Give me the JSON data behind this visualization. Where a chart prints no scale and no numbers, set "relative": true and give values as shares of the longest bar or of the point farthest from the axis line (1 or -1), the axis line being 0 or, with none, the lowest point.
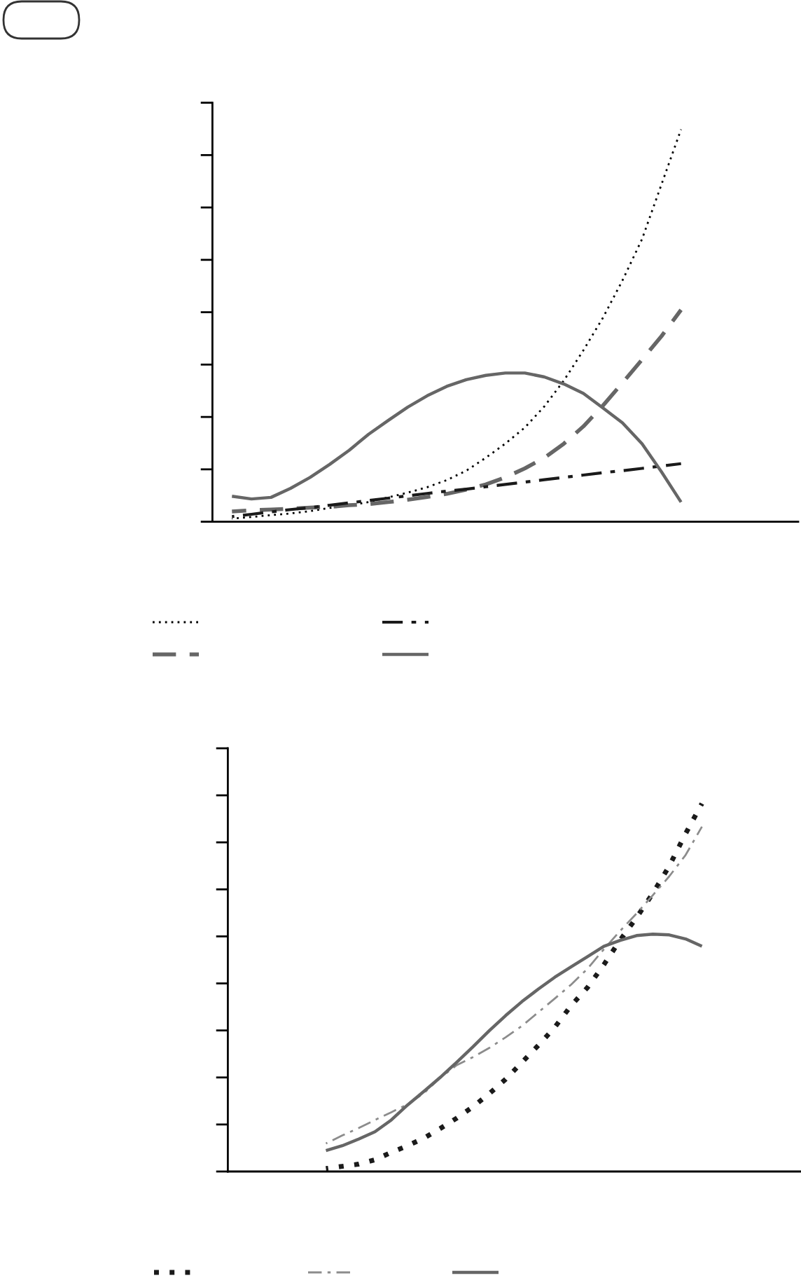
{
  "chart_data": [
    {
      "type": "line",
      "relative": true,
      "categories": [
        null,
        null,
        null,
        null,
        null,
        null,
        null,
        null,
        null,
        null,
        null,
        null,
        null,
        null,
        null,
        null,
        null,
        null,
        null,
        null,
        null,
        null,
        null,
        null,
        null,
        null,
        null,
        null,
        null,
        null,
        null
      ],
      "series": [
        {
          "color": "#000000",
          "line_style": "dotted",
          "values": [
            null,
            0.008,
            0.012,
            0.017,
            0.021,
            0.027,
            0.035,
            0.042,
            0.05,
            0.062,
            0.074,
            0.088,
            0.106,
            0.13,
            0.163,
            0.199,
            0.24,
            0.294,
            0.36,
            0.437,
            0.52,
            0.615,
            0.72,
            0.86,
            1.0,
            null,
            null,
            null,
            null,
            null,
            null
          ]
        },
        {
          "color": "#666666",
          "line_style": "dashed",
          "values": [
            null,
            0.026,
            0.029,
            0.031,
            0.033,
            0.036,
            0.038,
            0.042,
            0.045,
            0.05,
            0.056,
            0.063,
            0.071,
            0.082,
            0.095,
            0.113,
            0.136,
            0.163,
            0.199,
            0.243,
            0.296,
            0.354,
            0.413,
            0.473,
            0.54,
            null,
            null,
            null,
            null,
            null,
            null
          ]
        },
        {
          "color": "#1a1a1a",
          "line_style": "dashdot",
          "values": [
            null,
            0.013,
            0.019,
            0.025,
            0.031,
            0.036,
            0.042,
            0.048,
            0.054,
            0.06,
            0.066,
            0.072,
            0.078,
            0.083,
            0.089,
            0.095,
            0.101,
            0.107,
            0.113,
            0.119,
            0.125,
            0.13,
            0.136,
            0.142,
            0.148,
            null,
            null,
            null,
            null,
            null,
            null
          ]
        },
        {
          "color": "#666666",
          "line_style": "solid",
          "values": [
            null,
            0.065,
            0.058,
            0.062,
            0.085,
            0.113,
            0.146,
            0.182,
            0.223,
            0.258,
            0.292,
            0.321,
            0.345,
            0.362,
            0.373,
            0.379,
            0.379,
            0.369,
            0.351,
            0.327,
            0.29,
            0.252,
            0.199,
            0.127,
            0.05,
            null,
            null,
            null,
            null,
            null,
            null
          ]
        }
      ]
    },
    {
      "type": "line",
      "relative": true,
      "categories": [
        null,
        null,
        null,
        null,
        null,
        null,
        null,
        null,
        null,
        null,
        null,
        null,
        null,
        null,
        null,
        null,
        null,
        null,
        null,
        null,
        null,
        null,
        null,
        null,
        null,
        null,
        null,
        null,
        null,
        null,
        null,
        null,
        null,
        null,
        null,
        null
      ],
      "series": [
        {
          "color": "#1a1a1a",
          "line_style": "dotted",
          "values": [
            null,
            null,
            null,
            null,
            null,
            null,
            0.008,
            0.014,
            0.02,
            0.032,
            0.052,
            0.07,
            0.091,
            0.117,
            0.145,
            0.176,
            0.212,
            0.251,
            0.297,
            0.343,
            0.392,
            0.451,
            0.5,
            0.562,
            0.629,
            0.69,
            0.756,
            0.83,
            0.918,
            1.0,
            null,
            null,
            null,
            null,
            null,
            null
          ]
        },
        {
          "color": "#8c8c8c",
          "line_style": "dashdot",
          "values": [
            null,
            null,
            null,
            null,
            null,
            null,
            0.076,
            0.098,
            0.118,
            0.14,
            0.161,
            0.183,
            0.213,
            0.255,
            0.289,
            0.311,
            0.336,
            0.365,
            0.396,
            0.433,
            0.47,
            0.508,
            0.551,
            0.604,
            0.654,
            0.701,
            0.751,
            0.802,
            0.86,
            0.937,
            null,
            null,
            null,
            null,
            null,
            null
          ]
        },
        {
          "color": "#666666",
          "line_style": "solid",
          "values": [
            null,
            null,
            null,
            null,
            null,
            null,
            0.057,
            0.07,
            0.088,
            0.108,
            0.14,
            0.181,
            0.218,
            0.256,
            0.297,
            0.339,
            0.383,
            0.424,
            0.462,
            0.496,
            0.528,
            0.556,
            0.584,
            0.612,
            0.628,
            0.641,
            0.645,
            0.643,
            0.632,
            0.612,
            null,
            null,
            null,
            null,
            null,
            null
          ]
        }
      ]
    }
  ]
}
